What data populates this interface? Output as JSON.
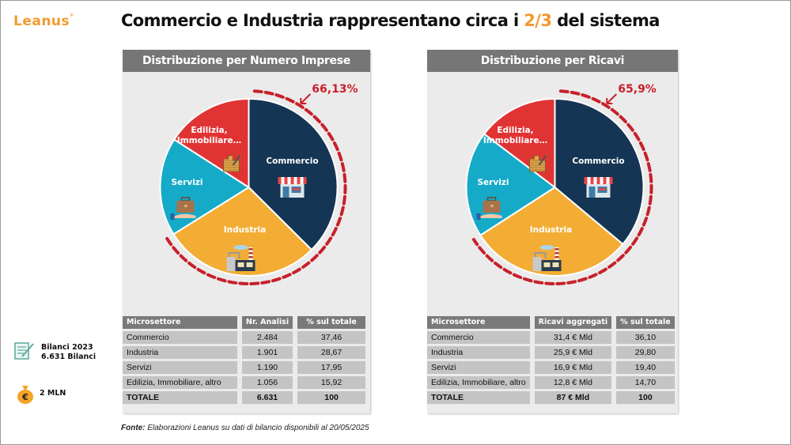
{
  "logo": {
    "text": "Leanus",
    "mark": "®"
  },
  "title": {
    "before": "Commercio e Industria rappresentano circa i ",
    "highlight": "2/3",
    "after": " del sistema"
  },
  "colors": {
    "commercio": "#153554",
    "industria": "#f3ad35",
    "servizi": "#15aac8",
    "edilizia": "#e03434",
    "dash": "#c8202a",
    "accent": "#f29a2e"
  },
  "chart_data": [
    {
      "type": "pie",
      "title": "Distribuzione per Numero Imprese",
      "categories": [
        "Commercio",
        "Industria",
        "Servizi",
        "Edilizia, Immobiliare, altro"
      ],
      "slice_labels": [
        "Commercio",
        "Industria",
        "Servizi",
        "Edilizia, Immobiliare…"
      ],
      "values": [
        37.46,
        28.67,
        17.95,
        15.92
      ],
      "annotation": "66,13%",
      "table": {
        "headers": [
          "Microsettore",
          "Nr. Analisi",
          "% sul totale"
        ],
        "rows": [
          [
            "Commercio",
            "2.484",
            "37,46"
          ],
          [
            "Industria",
            "1.901",
            "28,67"
          ],
          [
            "Servizi",
            "1.190",
            "17,95"
          ],
          [
            "Edilizia, Immobiliare, altro",
            "1.056",
            "15,92"
          ]
        ],
        "total": [
          "TOTALE",
          "6.631",
          "100"
        ]
      }
    },
    {
      "type": "pie",
      "title": "Distribuzione per Ricavi",
      "categories": [
        "Commercio",
        "Industria",
        "Servizi",
        "Edilizia, Immobiliare, altro"
      ],
      "slice_labels": [
        "Commercio",
        "Industria",
        "Servizi",
        "Edilizia, Immobiliare…"
      ],
      "values": [
        36.1,
        29.8,
        19.4,
        14.7
      ],
      "annotation": "65,9%",
      "table": {
        "headers": [
          "Microsettore",
          "Ricavi aggregati",
          "% sul totale"
        ],
        "rows": [
          [
            "Commercio",
            "31,4 € Mld",
            "36,10"
          ],
          [
            "Industria",
            "25,9 € Mld",
            "29,80"
          ],
          [
            "Servizi",
            "16,9 € Mld",
            "19,40"
          ],
          [
            "Edilizia, Immobiliare, altro",
            "12,8 € Mld",
            "14,70"
          ]
        ],
        "total": [
          "TOTALE",
          "87 € Mld",
          "100"
        ]
      }
    }
  ],
  "sidebar": {
    "bilanci_line1": "Bilanci 2023",
    "bilanci_line2": "6.631 Bilanci",
    "money": "2 MLN",
    "euro_symbol": "€"
  },
  "source": {
    "label": "Fonte:",
    "text": " Elaborazioni Leanus su dati di bilancio disponibili al 20/05/2025"
  }
}
